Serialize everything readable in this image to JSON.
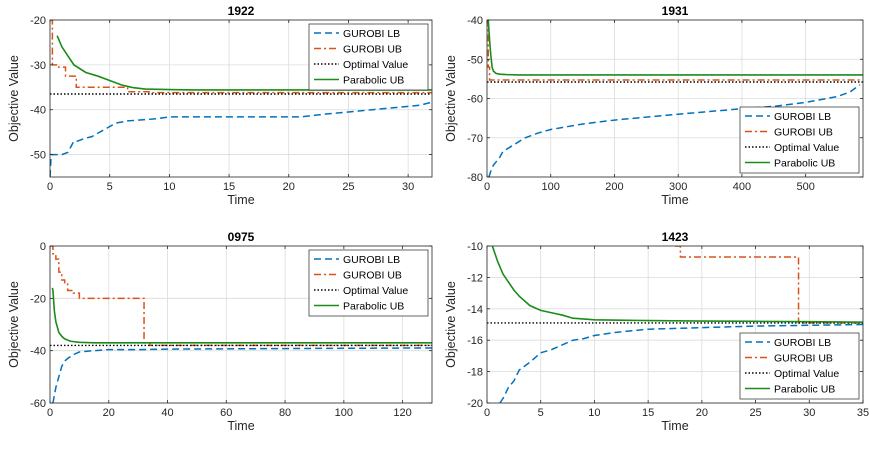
{
  "colors": {
    "gurobi_lb": "#0072BD",
    "gurobi_ub": "#D95319",
    "optimal": "#000000",
    "parabolic_ub": "#1A8C1A"
  },
  "chart_data": [
    {
      "type": "line",
      "title": "1922",
      "xlabel": "Time",
      "ylabel": "Objective Value",
      "xlim": [
        0,
        32
      ],
      "ylim": [
        -55,
        -20
      ],
      "xticks": [
        0,
        5,
        10,
        15,
        20,
        25,
        30
      ],
      "yticks": [
        -50,
        -40,
        -30,
        -20
      ],
      "grid": true,
      "legend_position": "top-right",
      "series": [
        {
          "name": "GUROBI LB",
          "style": "dashed",
          "x": [
            0,
            0.1,
            1,
            1.5,
            2,
            2.3,
            2.8,
            3.5,
            4.5,
            5.5,
            6.5,
            8,
            9,
            10,
            12,
            15,
            18,
            21,
            23,
            25,
            27,
            29,
            31,
            32
          ],
          "y": [
            -55,
            -50,
            -50,
            -49.5,
            -47,
            -47,
            -46.5,
            -46,
            -44.5,
            -43,
            -42.5,
            -42.2,
            -42,
            -41.6,
            -41.6,
            -41.6,
            -41.6,
            -41.6,
            -41,
            -40.5,
            -40,
            -39.5,
            -39,
            -38.3
          ]
        },
        {
          "name": "GUROBI UB",
          "style": "dashdot",
          "step": true,
          "x": [
            0,
            0.2,
            0.6,
            1.3,
            2.2,
            4.3,
            6.5,
            8.3,
            32
          ],
          "y": [
            -20,
            -30,
            -30.5,
            -32.5,
            -35,
            -35,
            -36,
            -36.2,
            -36.2
          ]
        },
        {
          "name": "Optimal Value",
          "style": "dotted",
          "x": [
            0,
            32
          ],
          "y": [
            -36.5,
            -36.5
          ]
        },
        {
          "name": "Parabolic UB",
          "style": "solid",
          "x": [
            0.6,
            1,
            1.5,
            2,
            3,
            4,
            5,
            6,
            7,
            8,
            10,
            12,
            15,
            20,
            25,
            30,
            32
          ],
          "y": [
            -23.5,
            -26,
            -28,
            -30,
            -31.7,
            -32.5,
            -33.5,
            -34.5,
            -35.1,
            -35.4,
            -35.5,
            -35.6,
            -35.6,
            -35.6,
            -35.6,
            -35.6,
            -35.6
          ]
        }
      ]
    },
    {
      "type": "line",
      "title": "1931",
      "xlabel": "Time",
      "ylabel": "Objective Value",
      "xlim": [
        0,
        590
      ],
      "ylim": [
        -80,
        -40
      ],
      "xticks": [
        0,
        100,
        200,
        300,
        400,
        500
      ],
      "yticks": [
        -80,
        -70,
        -60,
        -50,
        -40
      ],
      "grid": true,
      "legend_position": "bottom-right",
      "series": [
        {
          "name": "GUROBI LB",
          "style": "dashed",
          "x": [
            3,
            6,
            10,
            15,
            20,
            25,
            35,
            50,
            60,
            80,
            100,
            150,
            200,
            300,
            400,
            450,
            500,
            550,
            570,
            585
          ],
          "y": [
            -80,
            -78.5,
            -77,
            -76,
            -75,
            -73.5,
            -72.5,
            -71,
            -70,
            -68.8,
            -67.9,
            -66.5,
            -65.5,
            -64,
            -62.6,
            -62,
            -61,
            -59.5,
            -58.3,
            -56.5
          ]
        },
        {
          "name": "GUROBI UB",
          "style": "dashdot",
          "step": true,
          "x": [
            1,
            2,
            4,
            590
          ],
          "y": [
            -40,
            -52,
            -55.3,
            -55.3
          ]
        },
        {
          "name": "Optimal Value",
          "style": "dotted",
          "x": [
            0,
            590
          ],
          "y": [
            -55.8,
            -55.8
          ]
        },
        {
          "name": "Parabolic UB",
          "style": "solid",
          "x": [
            2,
            4,
            6,
            8,
            10,
            14,
            20,
            30,
            50,
            100,
            200,
            300,
            400,
            500,
            590
          ],
          "y": [
            -40,
            -45,
            -49,
            -52,
            -53,
            -53.6,
            -53.8,
            -53.9,
            -54,
            -54,
            -54,
            -54,
            -54,
            -54,
            -54
          ]
        }
      ]
    },
    {
      "type": "line",
      "title": "0975",
      "xlabel": "Time",
      "ylabel": "Objective Value",
      "xlim": [
        0,
        130
      ],
      "ylim": [
        -60,
        0
      ],
      "xticks": [
        0,
        20,
        40,
        60,
        80,
        100,
        120
      ],
      "yticks": [
        -60,
        -40,
        -20,
        0
      ],
      "grid": true,
      "legend_position": "top-right",
      "series": [
        {
          "name": "GUROBI LB",
          "style": "dashed",
          "x": [
            1,
            1.5,
            2,
            3,
            4,
            5,
            6,
            8,
            10,
            15,
            20,
            30,
            40,
            60,
            80,
            100,
            120,
            130
          ],
          "y": [
            -60,
            -57,
            -54,
            -50,
            -46,
            -44,
            -43,
            -41.5,
            -40.5,
            -40,
            -39.6,
            -39.6,
            -39.4,
            -39.3,
            -39.2,
            -39.1,
            -39,
            -39
          ]
        },
        {
          "name": "GUROBI UB",
          "style": "dashdot",
          "step": true,
          "x": [
            0,
            1,
            2,
            3,
            4,
            5,
            6,
            8,
            10,
            32,
            34,
            130
          ],
          "y": [
            0,
            -3,
            -5,
            -10,
            -13,
            -14,
            -17,
            -18,
            -20,
            -37,
            -38,
            -38
          ]
        },
        {
          "name": "Optimal Value",
          "style": "dotted",
          "x": [
            0,
            130
          ],
          "y": [
            -38,
            -38
          ]
        },
        {
          "name": "Parabolic UB",
          "style": "solid",
          "x": [
            0.8,
            1,
            1.5,
            2,
            3,
            4,
            5,
            7,
            10,
            15,
            20,
            40,
            60,
            80,
            100,
            120,
            130
          ],
          "y": [
            -16,
            -17,
            -25,
            -29,
            -33,
            -34.5,
            -35.5,
            -36.4,
            -36.8,
            -37,
            -37,
            -37,
            -37,
            -37,
            -37,
            -37,
            -37
          ]
        }
      ]
    },
    {
      "type": "line",
      "title": "1423",
      "xlabel": "Time",
      "ylabel": "Objective Value",
      "xlim": [
        0,
        35
      ],
      "ylim": [
        -20,
        -10
      ],
      "xticks": [
        0,
        5,
        10,
        15,
        20,
        25,
        30,
        35
      ],
      "yticks": [
        -20,
        -18,
        -16,
        -14,
        -12,
        -10
      ],
      "grid": true,
      "legend_position": "bottom-right",
      "series": [
        {
          "name": "GUROBI LB",
          "style": "dashed",
          "x": [
            1.2,
            1.5,
            2,
            2.5,
            3,
            4,
            5,
            6,
            7,
            8,
            9,
            10,
            12,
            15,
            20,
            25,
            30,
            35
          ],
          "y": [
            -20,
            -19.7,
            -19,
            -18.6,
            -17.9,
            -17.4,
            -16.8,
            -16.6,
            -16.3,
            -16,
            -15.9,
            -15.7,
            -15.5,
            -15.3,
            -15.2,
            -15.1,
            -15.05,
            -15
          ]
        },
        {
          "name": "GUROBI UB",
          "style": "dashdot",
          "step": true,
          "x": [
            17.5,
            18,
            29,
            35
          ],
          "y": [
            -10,
            -10.7,
            -14.9,
            -14.9
          ]
        },
        {
          "name": "Optimal Value",
          "style": "dotted",
          "x": [
            0,
            35
          ],
          "y": [
            -14.9,
            -14.9
          ]
        },
        {
          "name": "Parabolic UB",
          "style": "solid",
          "x": [
            0.5,
            1,
            1.5,
            2,
            2.5,
            3,
            4,
            5,
            6,
            7,
            8,
            10,
            15,
            20,
            25,
            30,
            35
          ],
          "y": [
            -10,
            -11,
            -11.8,
            -12.3,
            -12.8,
            -13.2,
            -13.8,
            -14.1,
            -14.25,
            -14.4,
            -14.6,
            -14.7,
            -14.75,
            -14.78,
            -14.8,
            -14.82,
            -14.85
          ]
        }
      ]
    }
  ]
}
